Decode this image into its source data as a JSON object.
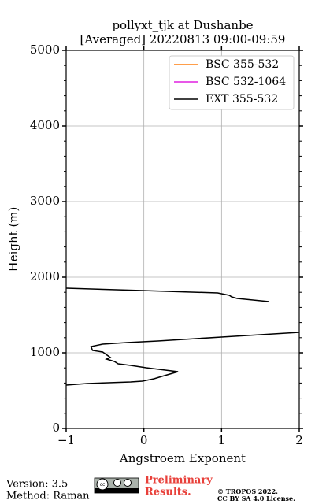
{
  "chart_data": {
    "type": "line",
    "title": "pollyxt_tjk at Dushanbe",
    "subtitle": "[Averaged] 20220813 09:00-09:59",
    "x_label": "Angstroem Exponent",
    "y_label": "Height (m)",
    "xlim": [
      -1,
      2
    ],
    "xticks": [
      {
        "value": -1,
        "label": "−1"
      },
      0,
      1,
      2
    ],
    "ylim": [
      0,
      5000
    ],
    "yticks": [
      0,
      1000,
      2000,
      3000,
      4000,
      5000
    ],
    "yminorticks": [
      200,
      400,
      600,
      800,
      1200,
      1400,
      1600,
      1800,
      2200,
      2400,
      2600,
      2800,
      3200,
      3400,
      3600,
      3800,
      4200,
      4400,
      4600,
      4800
    ],
    "grid": true,
    "legend": "upper right",
    "y": [
      573,
      594,
      615,
      625,
      656,
      688,
      750,
      802,
      833,
      854,
      885,
      917,
      938,
      1010,
      1031,
      1083,
      1115,
      1135,
      1156,
      1208,
      1271,
      1646,
      1677,
      1719,
      1740,
      1760,
      1792,
      1823,
      1854
    ],
    "series": [
      {
        "name": "BSC 355-532",
        "color": "#ff7f0e",
        "values": []
      },
      {
        "name": "BSC 532-1064",
        "color": "#e020e0",
        "values": []
      },
      {
        "name": "EXT 355-532",
        "color": "#000000",
        "values": [
          -1.0,
          -0.73,
          -0.17,
          -0.02,
          0.13,
          0.23,
          0.44,
          0.03,
          -0.17,
          -0.33,
          -0.38,
          -0.48,
          -0.43,
          -0.53,
          -0.66,
          -0.68,
          -0.53,
          -0.22,
          0.18,
          1.0,
          2.0,
          null,
          1.61,
          1.2,
          1.13,
          1.1,
          0.95,
          -0.02,
          -1.0
        ]
      }
    ],
    "footer": {
      "version": "Version: 3.5",
      "method": "Method: Raman",
      "preliminary": "Preliminary",
      "results": "Results.",
      "copyright": "© TROPOS 2022.",
      "license": "CC BY SA 4.0 License."
    }
  }
}
